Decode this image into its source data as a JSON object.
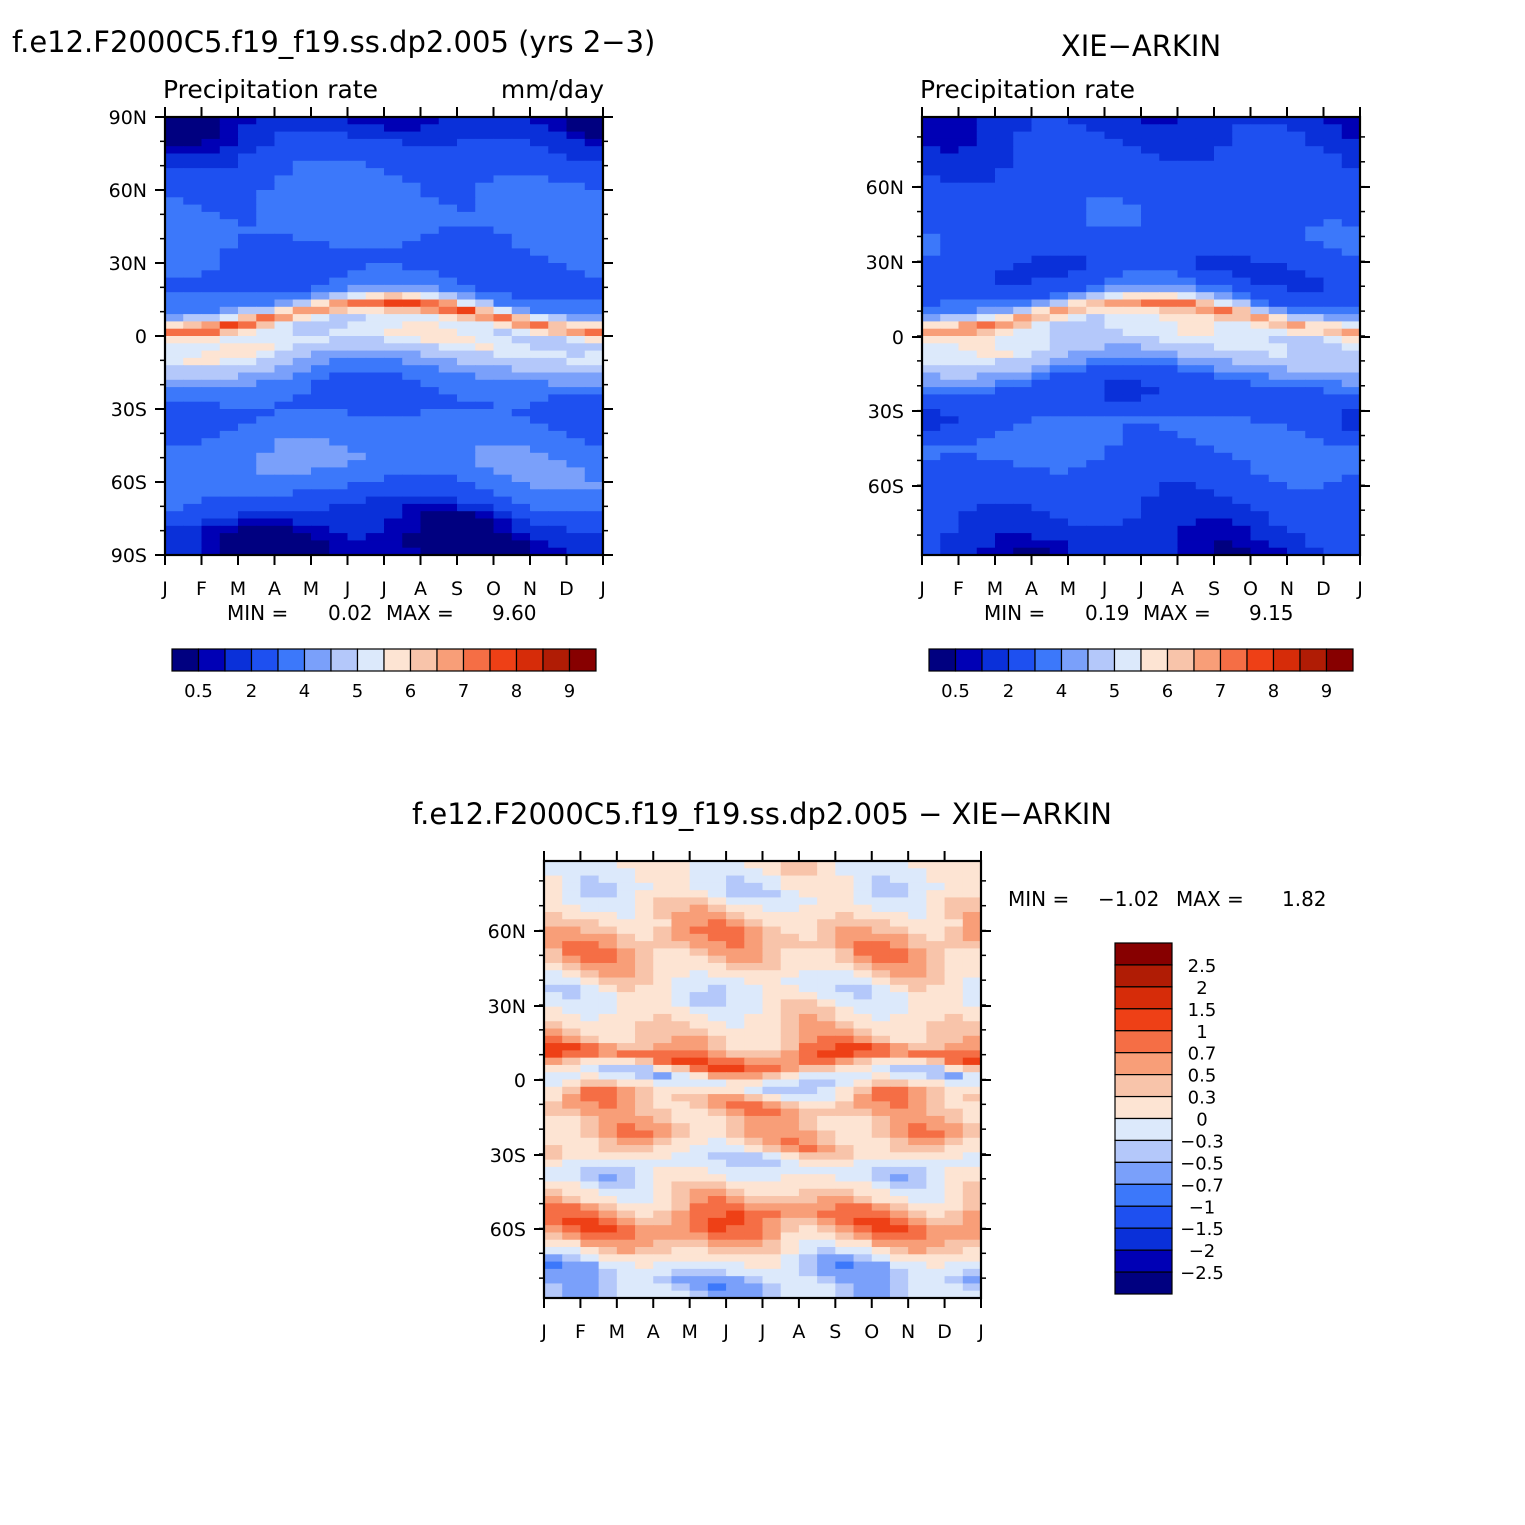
{
  "figure": {
    "panel_a_title": "f.e12.F2000C5.f19_f19.ss.dp2.005 (yrs 2-3)",
    "panel_b_title": "XIE-ARKIN",
    "panel_c_title": "f.e12.F2000C5.f19_f19.ss.dp2.005 - XIE-ARKIN"
  },
  "colors": {
    "abs_scale": [
      "#000080",
      "#0000b5",
      "#0a30d9",
      "#1e50f0",
      "#3c78fa",
      "#7aa0fa",
      "#b4c8fa",
      "#dce9fb",
      "#fde4d3",
      "#f8c4aa",
      "#f89e78",
      "#f56e45",
      "#ee4016",
      "#d62c09",
      "#b01c05",
      "#870000"
    ],
    "diff_scale": [
      "#000080",
      "#0000b5",
      "#0a30d9",
      "#1e50f0",
      "#3c78fa",
      "#7aa0fa",
      "#b4c8fa",
      "#dce9fb",
      "#fde4d3",
      "#f8c4aa",
      "#f89e78",
      "#f56e45",
      "#ee4016",
      "#d62c09",
      "#b01c05",
      "#870000"
    ]
  },
  "chart_data": [
    {
      "type": "heatmap",
      "title": "f.e12.F2000C5.f19_f19.ss.dp2.005 (yrs 2-3)",
      "left_label": "Precipitation rate",
      "units": "mm/day",
      "x_ticklabels": [
        "J",
        "F",
        "M",
        "A",
        "M",
        "J",
        "J",
        "A",
        "S",
        "O",
        "N",
        "D",
        "J"
      ],
      "y_ticklabels": [
        "90N",
        "60N",
        "30N",
        "0",
        "30S",
        "60S",
        "90S"
      ],
      "ylim": [
        -90,
        90
      ],
      "min_label": "MIN =",
      "min_value": "0.02",
      "max_label": "MAX =",
      "max_value": "9.60",
      "colorbar_levels": [
        "0.5",
        "2",
        "4",
        "5",
        "6",
        "7",
        "8",
        "9"
      ],
      "colorbar_orientation": "horizontal",
      "latitude_profile": [
        {
          "lat": 90,
          "value": 0.3
        },
        {
          "lat": 80,
          "value": 0.8
        },
        {
          "lat": 70,
          "value": 1.6
        },
        {
          "lat": 60,
          "value": 2.2
        },
        {
          "lat": 45,
          "value": 2.4
        },
        {
          "lat": 35,
          "value": 2.0
        },
        {
          "lat": 25,
          "value": 1.4
        },
        {
          "lat": 15,
          "value": 2.6
        },
        {
          "lat": 8,
          "value": 7.5
        },
        {
          "lat": 3,
          "value": 5.0
        },
        {
          "lat": -5,
          "value": 5.5
        },
        {
          "lat": -12,
          "value": 4.0
        },
        {
          "lat": -20,
          "value": 2.2
        },
        {
          "lat": -30,
          "value": 1.6
        },
        {
          "lat": -45,
          "value": 2.8
        },
        {
          "lat": -55,
          "value": 3.0
        },
        {
          "lat": -65,
          "value": 2.0
        },
        {
          "lat": -75,
          "value": 0.6
        },
        {
          "lat": -90,
          "value": 0.1
        }
      ]
    },
    {
      "type": "heatmap",
      "title": "XIE-ARKIN",
      "left_label": "Precipitation rate",
      "x_ticklabels": [
        "J",
        "F",
        "M",
        "A",
        "M",
        "J",
        "J",
        "A",
        "S",
        "O",
        "N",
        "D",
        "J"
      ],
      "y_ticklabels": [
        "60N",
        "30N",
        "0",
        "30S",
        "60S"
      ],
      "ylim": [
        -88,
        88
      ],
      "min_label": "MIN =",
      "min_value": "0.19",
      "max_label": "MAX =",
      "max_value": "9.15",
      "colorbar_levels": [
        "0.5",
        "2",
        "4",
        "5",
        "6",
        "7",
        "8",
        "9"
      ],
      "colorbar_orientation": "horizontal",
      "latitude_profile": [
        {
          "lat": 88,
          "value": 0.6
        },
        {
          "lat": 75,
          "value": 1.0
        },
        {
          "lat": 60,
          "value": 1.5
        },
        {
          "lat": 45,
          "value": 1.8
        },
        {
          "lat": 35,
          "value": 1.6
        },
        {
          "lat": 25,
          "value": 0.9
        },
        {
          "lat": 15,
          "value": 2.3
        },
        {
          "lat": 8,
          "value": 7.0
        },
        {
          "lat": 3,
          "value": 5.2
        },
        {
          "lat": -5,
          "value": 5.2
        },
        {
          "lat": -12,
          "value": 3.8
        },
        {
          "lat": -20,
          "value": 1.4
        },
        {
          "lat": -30,
          "value": 1.2
        },
        {
          "lat": -40,
          "value": 2.4
        },
        {
          "lat": -50,
          "value": 2.0
        },
        {
          "lat": -60,
          "value": 1.5
        },
        {
          "lat": -75,
          "value": 0.9
        },
        {
          "lat": -88,
          "value": 0.5
        }
      ]
    },
    {
      "type": "heatmap",
      "title": "f.e12.F2000C5.f19_f19.ss.dp2.005 - XIE-ARKIN",
      "x_ticklabels": [
        "J",
        "F",
        "M",
        "A",
        "M",
        "J",
        "J",
        "A",
        "S",
        "O",
        "N",
        "D",
        "J"
      ],
      "y_ticklabels": [
        "60N",
        "30N",
        "0",
        "30S",
        "60S"
      ],
      "ylim": [
        -88,
        88
      ],
      "min_label": "MIN =",
      "min_value": "-1.02",
      "max_label": "MAX =",
      "max_value": "1.82",
      "colorbar_levels": [
        "2.5",
        "2",
        "1.5",
        "1",
        "0.7",
        "0.5",
        "0.3",
        "0",
        "-0.3",
        "-0.5",
        "-0.7",
        "-1",
        "-1.5",
        "-2",
        "-2.5"
      ],
      "colorbar_orientation": "vertical",
      "latitude_profile": [
        {
          "lat": 88,
          "value": 0.1
        },
        {
          "lat": 75,
          "value": -0.2
        },
        {
          "lat": 68,
          "value": 0.2
        },
        {
          "lat": 55,
          "value": 0.6
        },
        {
          "lat": 45,
          "value": 0.3
        },
        {
          "lat": 35,
          "value": -0.2
        },
        {
          "lat": 25,
          "value": 0.2
        },
        {
          "lat": 15,
          "value": 0.4
        },
        {
          "lat": 8,
          "value": 1.0
        },
        {
          "lat": 0,
          "value": -0.4
        },
        {
          "lat": -8,
          "value": 0.6
        },
        {
          "lat": -15,
          "value": 0.4
        },
        {
          "lat": -25,
          "value": 0.5
        },
        {
          "lat": -35,
          "value": -0.3
        },
        {
          "lat": -45,
          "value": 0.2
        },
        {
          "lat": -58,
          "value": 0.9
        },
        {
          "lat": -68,
          "value": 0.3
        },
        {
          "lat": -78,
          "value": -0.5
        },
        {
          "lat": -88,
          "value": -0.3
        }
      ]
    }
  ]
}
